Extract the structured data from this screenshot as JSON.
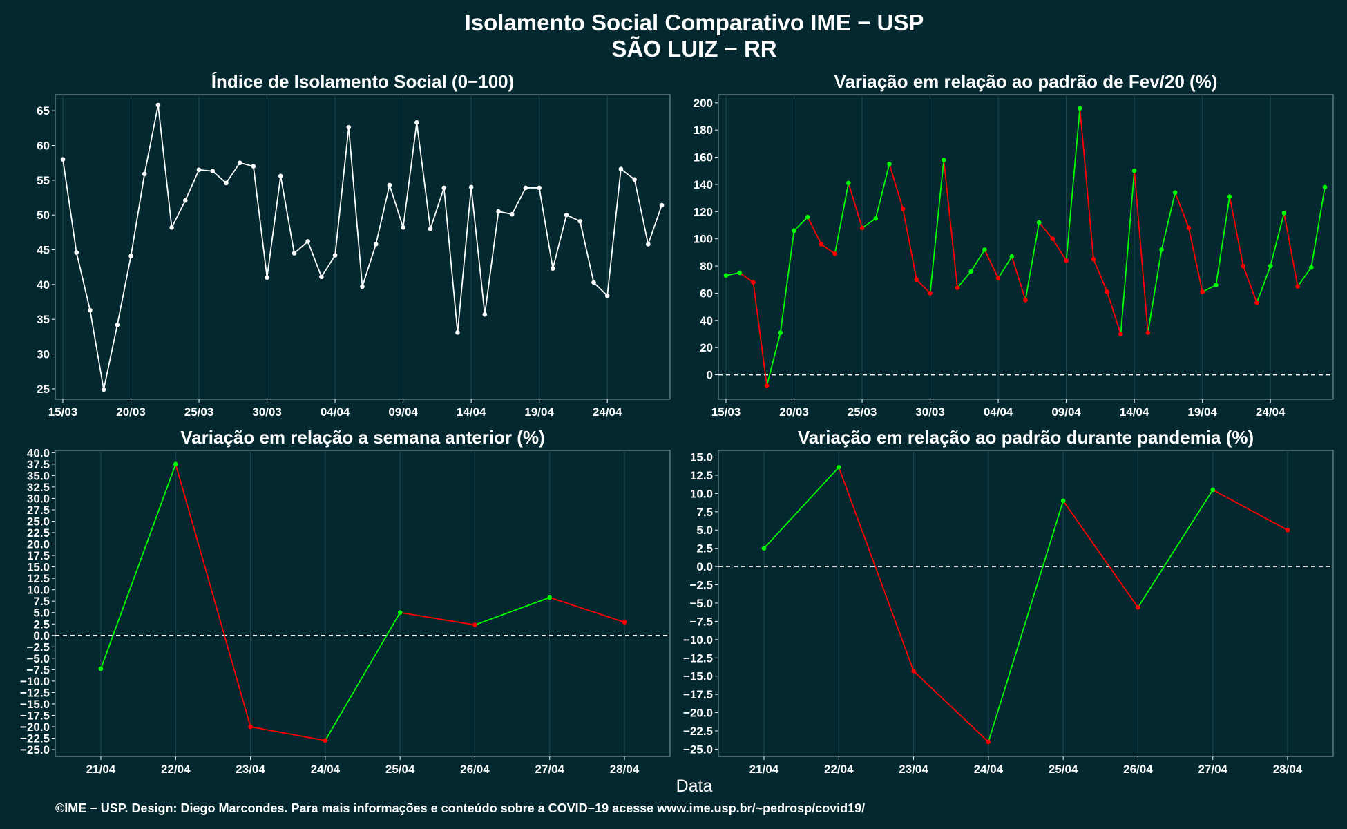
{
  "page": {
    "title": "Isolamento Social Comparativo IME − USP",
    "subtitle": "SÃO LUIZ − RR",
    "xlabel": "Data",
    "footer": "©IME − USP. Design: Diego Marcondes. Para mais informações e conteúdo sobre a COVID−19 acesse www.ime.usp.br/~pedrosp/covid19/"
  },
  "colors": {
    "background": "#03282f",
    "grid": "#1f4a52",
    "white_series": "#ffffff",
    "positive": "#00ff00",
    "negative": "#ff0000",
    "zero_line": "#ffffff"
  },
  "chart_data": [
    {
      "type": "line",
      "title": "Índice de Isolamento Social (0−100)",
      "color_mode": "white",
      "x_dates": [
        "15/03",
        "16/03",
        "17/03",
        "18/03",
        "19/03",
        "20/03",
        "21/03",
        "22/03",
        "23/03",
        "24/03",
        "25/03",
        "26/03",
        "27/03",
        "28/03",
        "29/03",
        "30/03",
        "31/03",
        "01/04",
        "02/04",
        "03/04",
        "04/04",
        "05/04",
        "06/04",
        "07/04",
        "08/04",
        "09/04",
        "10/04",
        "11/04",
        "12/04",
        "13/04",
        "14/04",
        "15/04",
        "16/04",
        "17/04",
        "18/04",
        "19/04",
        "20/04",
        "21/04",
        "22/04",
        "23/04",
        "24/04",
        "25/04",
        "26/04",
        "27/04",
        "28/04"
      ],
      "values": [
        58.0,
        44.6,
        36.3,
        24.9,
        34.2,
        44.1,
        55.9,
        65.8,
        48.2,
        52.1,
        56.5,
        56.3,
        54.6,
        57.5,
        57.0,
        41.0,
        55.6,
        44.5,
        46.2,
        41.1,
        44.2,
        62.6,
        39.7,
        45.8,
        54.3,
        48.2,
        63.3,
        48.0,
        53.9,
        33.1,
        54.0,
        35.7,
        50.5,
        50.1,
        53.9,
        53.9,
        42.3,
        50.0,
        49.1,
        40.3,
        38.4,
        56.6,
        55.1,
        45.8,
        51.4
      ],
      "x_ticks": [
        "15/03",
        "20/03",
        "25/03",
        "30/03",
        "04/04",
        "09/04",
        "14/04",
        "19/04",
        "24/04"
      ],
      "y_ticks": [
        25,
        30,
        35,
        40,
        45,
        50,
        55,
        60,
        65
      ],
      "ylim": [
        23.5,
        67.3
      ],
      "zero_line": false
    },
    {
      "type": "line",
      "title": "Variação em relação ao padrão de Fev/20 (%)",
      "color_mode": "signed",
      "x_dates": [
        "15/03",
        "16/03",
        "17/03",
        "18/03",
        "19/03",
        "20/03",
        "21/03",
        "22/03",
        "23/03",
        "24/03",
        "25/03",
        "26/03",
        "27/03",
        "28/03",
        "29/03",
        "30/03",
        "31/03",
        "01/04",
        "02/04",
        "03/04",
        "04/04",
        "05/04",
        "06/04",
        "07/04",
        "08/04",
        "09/04",
        "10/04",
        "11/04",
        "12/04",
        "13/04",
        "14/04",
        "15/04",
        "16/04",
        "17/04",
        "18/04",
        "19/04",
        "20/04",
        "21/04",
        "22/04",
        "23/04",
        "24/04",
        "25/04",
        "26/04",
        "27/04",
        "28/04"
      ],
      "values": [
        73,
        75,
        68,
        -8,
        31,
        106,
        116,
        96,
        89,
        141,
        108,
        115,
        155,
        122,
        70,
        60,
        158,
        64,
        76,
        92,
        71,
        87,
        55,
        112,
        100,
        84,
        196,
        85,
        61,
        30,
        150,
        31,
        92,
        134,
        108,
        61,
        66,
        131,
        80,
        53,
        80,
        119,
        65,
        79,
        138
      ],
      "x_ticks": [
        "15/03",
        "20/03",
        "25/03",
        "30/03",
        "04/04",
        "09/04",
        "14/04",
        "19/04",
        "24/04"
      ],
      "y_ticks": [
        0,
        20,
        40,
        60,
        80,
        100,
        120,
        140,
        160,
        180,
        200
      ],
      "ylim": [
        -18,
        206
      ],
      "zero_line": true
    },
    {
      "type": "line",
      "title": "Variação em relação a semana anterior (%)",
      "color_mode": "signed",
      "x_dates": [
        "21/04",
        "22/04",
        "23/04",
        "24/04",
        "25/04",
        "26/04",
        "27/04",
        "28/04"
      ],
      "values": [
        -7.3,
        37.5,
        -20.0,
        -23.0,
        5.0,
        2.3,
        8.3,
        2.9
      ],
      "x_ticks": [
        "21/04",
        "22/04",
        "23/04",
        "24/04",
        "25/04",
        "26/04",
        "27/04",
        "28/04"
      ],
      "y_ticks": [
        -25,
        -22.5,
        -20,
        -17.5,
        -15,
        -12.5,
        -10,
        -7.5,
        -5,
        -2.5,
        0,
        2.5,
        5,
        7.5,
        10,
        12.5,
        15,
        17.5,
        20,
        22.5,
        25,
        27.5,
        30,
        32.5,
        35,
        37.5,
        40
      ],
      "ylim": [
        -26.5,
        40.5
      ],
      "zero_line": true
    },
    {
      "type": "line",
      "title": "Variação em relação ao padrão durante pandemia (%)",
      "color_mode": "signed",
      "x_dates": [
        "21/04",
        "22/04",
        "23/04",
        "24/04",
        "25/04",
        "26/04",
        "27/04",
        "28/04"
      ],
      "values": [
        2.5,
        13.6,
        -14.3,
        -24.0,
        9.0,
        -5.6,
        10.5,
        5.0
      ],
      "x_ticks": [
        "21/04",
        "22/04",
        "23/04",
        "24/04",
        "25/04",
        "26/04",
        "27/04",
        "28/04"
      ],
      "y_ticks": [
        -25,
        -22.5,
        -20,
        -17.5,
        -15,
        -12.5,
        -10,
        -7.5,
        -5,
        -2.5,
        0,
        2.5,
        5,
        7.5,
        10,
        12.5,
        15
      ],
      "ylim": [
        -26.0,
        15.9
      ],
      "zero_line": true
    }
  ]
}
